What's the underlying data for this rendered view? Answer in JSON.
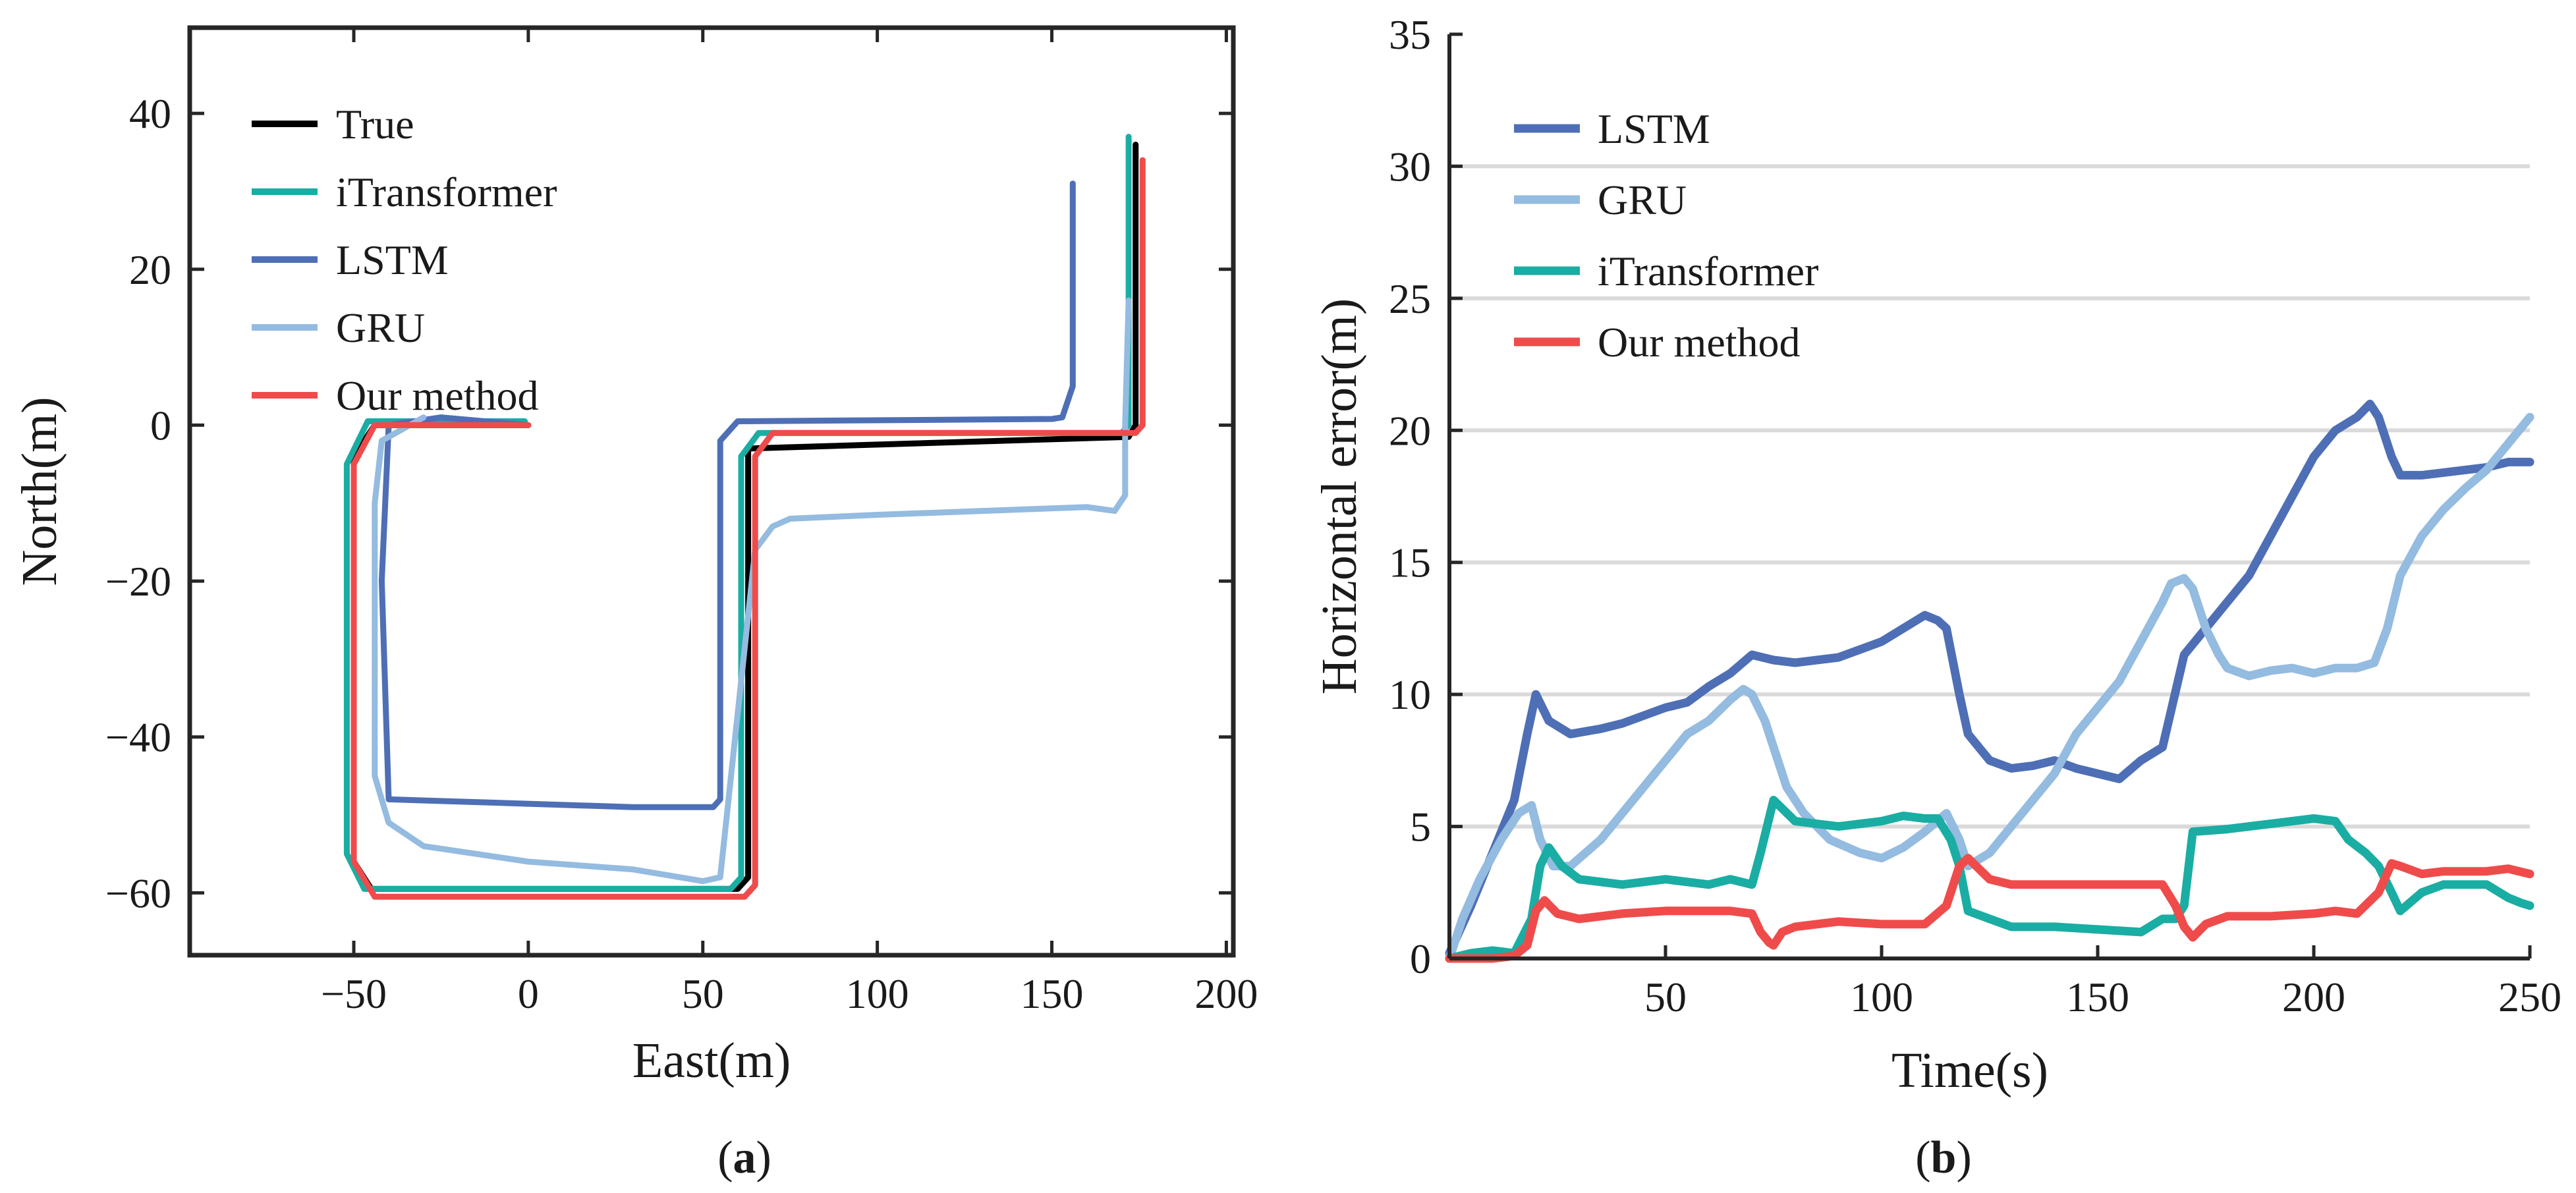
{
  "chart_data": [
    {
      "type": "line",
      "panel_label": "a",
      "xlabel": "East(m)",
      "ylabel": "North(m)",
      "xlim": [
        -97,
        202
      ],
      "ylim": [
        -68,
        51
      ],
      "xticks": [
        -50,
        0,
        50,
        100,
        150,
        200
      ],
      "xtick_labels": [
        "−50",
        "0",
        "50",
        "100",
        "150",
        "200"
      ],
      "yticks": [
        40,
        20,
        0,
        -20,
        -40,
        -60
      ],
      "ytick_labels": [
        "40",
        "20",
        "0",
        "−20",
        "−40",
        "−60"
      ],
      "grid": false,
      "legend_position": "top-left",
      "series": [
        {
          "name": "True",
          "color": "#000000",
          "x": [
            0,
            -44,
            -50,
            -50,
            -45,
            60,
            63,
            63,
            172,
            174,
            174
          ],
          "y": [
            0,
            0,
            -4,
            -56,
            -59.5,
            -59.5,
            -58,
            -3,
            -1.5,
            0,
            36
          ]
        },
        {
          "name": "iTransformer",
          "color": "#1aada3",
          "x": [
            -1,
            -46,
            -52,
            -52,
            -47,
            58,
            61,
            61,
            66,
            170,
            172,
            172
          ],
          "y": [
            0.5,
            0.5,
            -5,
            -55,
            -59.5,
            -59.5,
            -58,
            -4,
            -1,
            -1,
            0,
            37
          ]
        },
        {
          "name": "LSTM",
          "color": "#4e6fb5",
          "x": [
            0,
            -25,
            -40,
            -42,
            -40,
            30,
            53,
            55,
            55,
            60,
            150,
            153,
            156,
            156
          ],
          "y": [
            0,
            1,
            0,
            -20,
            -48,
            -49,
            -49,
            -48,
            -2,
            0.5,
            0.8,
            1,
            5,
            31
          ]
        },
        {
          "name": "GRU",
          "color": "#94bbe0",
          "x": [
            -30,
            -42,
            -44,
            -44,
            -40,
            -30,
            0,
            30,
            50,
            55,
            65,
            70,
            75,
            100,
            130,
            160,
            168,
            171,
            171,
            172
          ],
          "y": [
            1,
            -2,
            -10,
            -45,
            -51,
            -54,
            -56,
            -57,
            -58.5,
            -58,
            -16,
            -13,
            -12,
            -11.5,
            -11,
            -10.5,
            -11,
            -9,
            0,
            16
          ]
        },
        {
          "name": "Our method",
          "color": "#ef4b4b",
          "x": [
            0,
            -44,
            -50,
            -50,
            -44,
            62,
            65,
            65,
            70,
            174,
            176,
            176
          ],
          "y": [
            0,
            0,
            -5,
            -56,
            -60.5,
            -60.5,
            -59,
            -4,
            -1,
            -1,
            0,
            34
          ]
        }
      ]
    },
    {
      "type": "line",
      "panel_label": "b",
      "xlabel": "Time(s)",
      "ylabel": "Horizontal error(m)",
      "xlim": [
        0,
        250
      ],
      "ylim": [
        0,
        35
      ],
      "xticks": [
        50,
        100,
        150,
        200,
        250
      ],
      "xtick_labels": [
        "50",
        "100",
        "150",
        "200",
        "250"
      ],
      "yticks": [
        0,
        5,
        10,
        15,
        20,
        25,
        30,
        35
      ],
      "ytick_labels": [
        "0",
        "5",
        "10",
        "15",
        "20",
        "25",
        "30",
        "35"
      ],
      "grid": true,
      "legend_position": "top-left",
      "series": [
        {
          "name": "LSTM",
          "color": "#4e6fb5",
          "x": [
            0,
            5,
            10,
            15,
            18,
            20,
            23,
            28,
            35,
            40,
            45,
            50,
            55,
            60,
            65,
            70,
            75,
            80,
            85,
            90,
            95,
            100,
            105,
            110,
            113,
            115,
            118,
            120,
            125,
            130,
            135,
            140,
            145,
            150,
            155,
            160,
            165,
            170,
            175,
            180,
            185,
            190,
            195,
            200,
            205,
            210,
            213,
            215,
            218,
            220,
            225,
            230,
            235,
            240,
            245,
            250
          ],
          "y": [
            0.2,
            2,
            4,
            6,
            8.5,
            10,
            9,
            8.5,
            8.7,
            8.9,
            9.2,
            9.5,
            9.7,
            10.3,
            10.8,
            11.5,
            11.3,
            11.2,
            11.3,
            11.4,
            11.7,
            12,
            12.5,
            13,
            12.8,
            12.5,
            10,
            8.5,
            7.5,
            7.2,
            7.3,
            7.5,
            7.2,
            7,
            6.8,
            7.5,
            8,
            11.5,
            12.5,
            13.5,
            14.5,
            16,
            17.5,
            19,
            20,
            20.5,
            21,
            20.5,
            19,
            18.3,
            18.3,
            18.4,
            18.5,
            18.6,
            18.8,
            18.8
          ]
        },
        {
          "name": "GRU",
          "color": "#94bbe0",
          "x": [
            0,
            3,
            7,
            12,
            16,
            19,
            21,
            24,
            28,
            35,
            40,
            45,
            50,
            55,
            60,
            65,
            68,
            70,
            73,
            75,
            78,
            82,
            88,
            95,
            100,
            105,
            110,
            115,
            118,
            120,
            125,
            130,
            135,
            140,
            145,
            150,
            155,
            160,
            165,
            167,
            170,
            172,
            175,
            178,
            180,
            185,
            190,
            195,
            200,
            205,
            210,
            214,
            217,
            220,
            225,
            230,
            235,
            240,
            245,
            250
          ],
          "y": [
            0,
            1.5,
            3,
            4.5,
            5.5,
            5.8,
            4.5,
            3.5,
            3.5,
            4.5,
            5.5,
            6.5,
            7.5,
            8.5,
            9,
            9.8,
            10.2,
            10,
            9,
            8,
            6.5,
            5.5,
            4.5,
            4,
            3.8,
            4.2,
            4.8,
            5.5,
            4.5,
            3.5,
            4,
            5,
            6,
            7,
            8.5,
            9.5,
            10.5,
            12,
            13.5,
            14.2,
            14.4,
            14,
            12.5,
            11.5,
            11,
            10.7,
            10.9,
            11,
            10.8,
            11,
            11,
            11.2,
            12.5,
            14.5,
            16,
            17,
            17.8,
            18.5,
            19.5,
            20.5
          ]
        },
        {
          "name": "iTransformer",
          "color": "#1aada3",
          "x": [
            0,
            5,
            10,
            15,
            19,
            21,
            23,
            26,
            30,
            40,
            50,
            60,
            65,
            70,
            72,
            75,
            80,
            90,
            100,
            105,
            110,
            113,
            116,
            118,
            120,
            125,
            130,
            140,
            150,
            160,
            165,
            168,
            170,
            172,
            180,
            190,
            200,
            205,
            208,
            212,
            215,
            218,
            220,
            225,
            230,
            240,
            245,
            248,
            250
          ],
          "y": [
            0,
            0.2,
            0.3,
            0.2,
            1.5,
            3.5,
            4.2,
            3.5,
            3,
            2.8,
            3,
            2.8,
            3,
            2.8,
            4,
            6,
            5.2,
            5,
            5.2,
            5.4,
            5.3,
            5.3,
            4.5,
            3.5,
            1.8,
            1.5,
            1.2,
            1.2,
            1.1,
            1,
            1.5,
            1.5,
            2,
            4.8,
            4.9,
            5.1,
            5.3,
            5.2,
            4.5,
            4,
            3.5,
            2.5,
            1.8,
            2.5,
            2.8,
            2.8,
            2.3,
            2.1,
            2
          ]
        },
        {
          "name": "Our method",
          "color": "#ef4b4b",
          "x": [
            0,
            5,
            10,
            15,
            18,
            20,
            22,
            25,
            30,
            40,
            50,
            60,
            65,
            70,
            72,
            74,
            75,
            77,
            80,
            90,
            100,
            110,
            115,
            118,
            120,
            125,
            130,
            140,
            150,
            160,
            165,
            168,
            170,
            172,
            175,
            180,
            190,
            200,
            205,
            210,
            215,
            218,
            220,
            225,
            230,
            240,
            245,
            250
          ],
          "y": [
            0,
            0,
            0,
            0.1,
            0.5,
            1.8,
            2.2,
            1.7,
            1.5,
            1.7,
            1.8,
            1.8,
            1.8,
            1.7,
            1,
            0.6,
            0.5,
            1,
            1.2,
            1.4,
            1.3,
            1.3,
            2,
            3.5,
            3.8,
            3,
            2.8,
            2.8,
            2.8,
            2.8,
            2.8,
            2,
            1.2,
            0.8,
            1.3,
            1.6,
            1.6,
            1.7,
            1.8,
            1.7,
            2.5,
            3.6,
            3.5,
            3.2,
            3.3,
            3.3,
            3.4,
            3.2
          ]
        }
      ]
    }
  ]
}
